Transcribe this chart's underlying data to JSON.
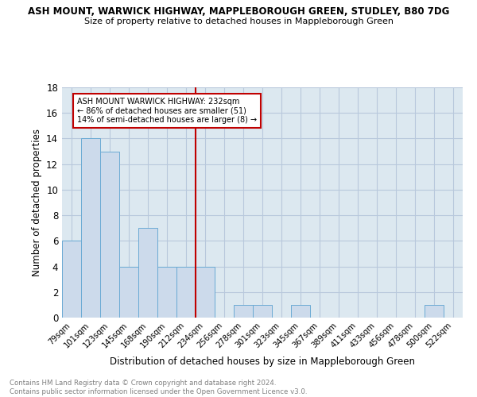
{
  "title1": "ASH MOUNT, WARWICK HIGHWAY, MAPPLEBOROUGH GREEN, STUDLEY, B80 7DG",
  "title2": "Size of property relative to detached houses in Mappleborough Green",
  "xlabel": "Distribution of detached houses by size in Mappleborough Green",
  "ylabel": "Number of detached properties",
  "categories": [
    "79sqm",
    "101sqm",
    "123sqm",
    "145sqm",
    "168sqm",
    "190sqm",
    "212sqm",
    "234sqm",
    "256sqm",
    "278sqm",
    "301sqm",
    "323sqm",
    "345sqm",
    "367sqm",
    "389sqm",
    "411sqm",
    "433sqm",
    "456sqm",
    "478sqm",
    "500sqm",
    "522sqm"
  ],
  "values": [
    6,
    14,
    13,
    4,
    7,
    4,
    4,
    4,
    0,
    1,
    1,
    0,
    1,
    0,
    0,
    0,
    0,
    0,
    0,
    1,
    0
  ],
  "bar_color": "#ccdaeb",
  "bar_edge_color": "#6aaad4",
  "vline_pos": 6.5,
  "vline_color": "#c00000",
  "annotation_text": "ASH MOUNT WARWICK HIGHWAY: 232sqm\n← 86% of detached houses are smaller (51)\n14% of semi-detached houses are larger (8) →",
  "annotation_box_color": "white",
  "annotation_box_edge": "#c00000",
  "ylim": [
    0,
    18
  ],
  "yticks": [
    0,
    2,
    4,
    6,
    8,
    10,
    12,
    14,
    16,
    18
  ],
  "grid_color": "#b8c8dc",
  "background_color": "#dce8f0",
  "footer": "Contains HM Land Registry data © Crown copyright and database right 2024.\nContains public sector information licensed under the Open Government Licence v3.0.",
  "fig_width": 6.0,
  "fig_height": 5.0,
  "dpi": 100
}
